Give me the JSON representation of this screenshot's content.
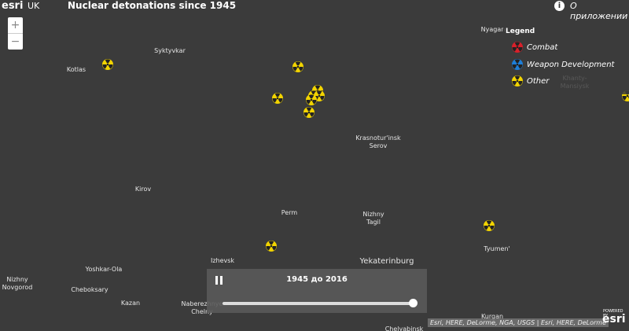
{
  "header": {
    "logo": "esri",
    "logo_suffix": "UK",
    "title": "Nuclear detonations since 1945",
    "about": "О приложении"
  },
  "zoom": {
    "in": "+",
    "out": "−"
  },
  "legend": {
    "title": "Legend",
    "items": [
      "Combat",
      "Weapon Development",
      "Other"
    ]
  },
  "cities": [
    {
      "lines": [
        "Nyagan"
      ]
    },
    {
      "lines": [
        "Syktyvkar"
      ]
    },
    {
      "lines": [
        "Kotlas"
      ]
    },
    {
      "lines": [
        "Khanty-",
        "Mansiysk"
      ]
    },
    {
      "lines": [
        "Krasnotur'insk",
        "Serov"
      ]
    },
    {
      "lines": [
        "Kirov"
      ]
    },
    {
      "lines": [
        "Perm"
      ]
    },
    {
      "lines": [
        "Nizhny",
        "Tagil"
      ]
    },
    {
      "lines": [
        "Tyumen'"
      ]
    },
    {
      "lines": [
        "Izhevsk"
      ]
    },
    {
      "lines": [
        "Yekaterinburg"
      ]
    },
    {
      "lines": [
        "Yoshkar-Ola"
      ]
    },
    {
      "lines": [
        "Nizhny",
        "Novgorod"
      ]
    },
    {
      "lines": [
        "Cheboksary"
      ]
    },
    {
      "lines": [
        "Kazan"
      ]
    },
    {
      "lines": [
        "Naberezhnye",
        "Chelny"
      ]
    },
    {
      "lines": [
        "Kurgan"
      ]
    },
    {
      "lines": [
        "Chelyabinsk"
      ]
    }
  ],
  "time_slider": {
    "label": "1945 до 2016"
  },
  "attribution": "Esri, HERE, DeLorme, NGA, USGS | Esri, HERE, DeLorme",
  "powered_by": {
    "caption": "POWERED BY",
    "brand": "esri"
  }
}
